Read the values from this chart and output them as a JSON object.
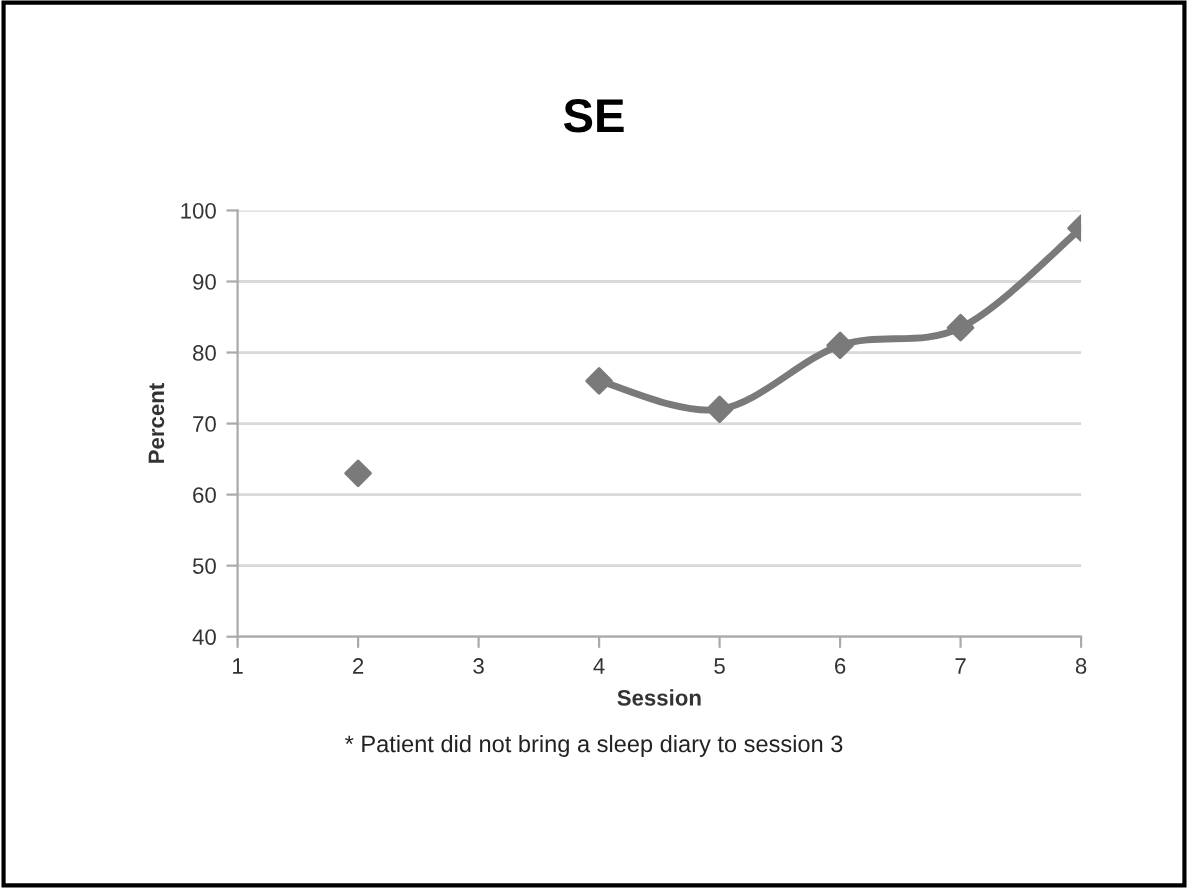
{
  "chart_data": {
    "type": "line",
    "title": "SE",
    "xlabel": "Session",
    "ylabel": "Percent",
    "series": [
      {
        "type": "scatter",
        "color": "#7a7a7a",
        "x": [
          2
        ],
        "values": [
          63
        ]
      },
      {
        "color": "#7a7a7a",
        "x": [
          4,
          5,
          6,
          7,
          8
        ],
        "values": [
          76,
          72,
          81,
          83.5,
          97.5
        ]
      }
    ],
    "xlim": [
      1,
      8
    ],
    "xticks": [
      1,
      2,
      3,
      4,
      5,
      6,
      7,
      8
    ],
    "ylim": [
      40,
      100
    ],
    "yticks": [
      40,
      50,
      60,
      70,
      80,
      90,
      100
    ],
    "grid": "y",
    "marker": "diamond",
    "line_style": "solid",
    "legend": false,
    "annotations": [
      "* Patient did not bring a sleep diary to session 3"
    ]
  }
}
